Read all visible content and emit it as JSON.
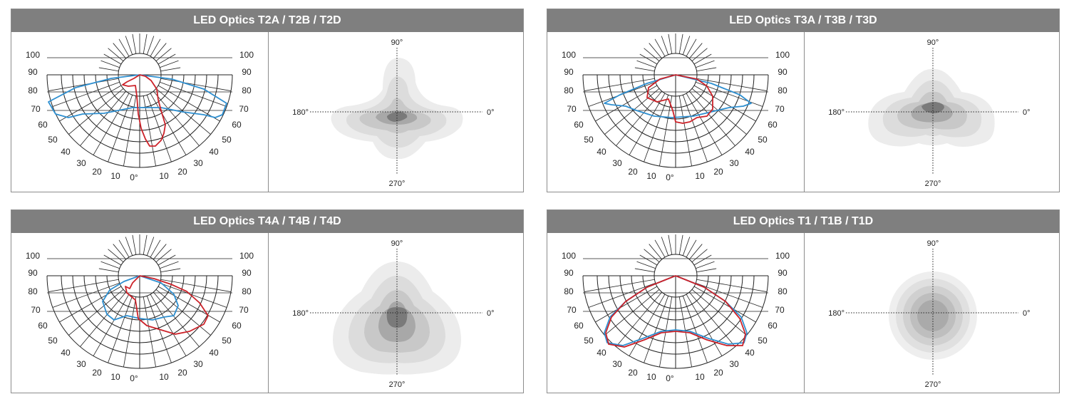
{
  "panels": [
    {
      "title": "LED Optics T2A / T2B / T2D",
      "polar": {
        "left_labels": [
          "100",
          "90",
          "80",
          "70",
          "60",
          "50",
          "40",
          "30",
          "20",
          "10",
          "0°"
        ],
        "right_labels": [
          "100",
          "90",
          "80",
          "70",
          "60",
          "50",
          "40",
          "30",
          "20",
          "10"
        ]
      },
      "iso": {
        "top": "90°",
        "left": "180°",
        "right": "0°",
        "bottom": "270°"
      }
    },
    {
      "title": "LED Optics T3A / T3B / T3D",
      "polar": {
        "left_labels": [
          "100",
          "90",
          "80",
          "70",
          "60",
          "50",
          "40",
          "30",
          "20",
          "10",
          "0°"
        ],
        "right_labels": [
          "100",
          "90",
          "80",
          "70",
          "60",
          "50",
          "40",
          "30",
          "20",
          "10"
        ]
      },
      "iso": {
        "top": "90°",
        "left": "180°",
        "right": "0°",
        "bottom": "270°"
      }
    },
    {
      "title": "LED Optics T4A / T4B / T4D",
      "polar": {
        "left_labels": [
          "100",
          "90",
          "80",
          "70",
          "60",
          "50",
          "40",
          "30",
          "20",
          "10",
          "0°"
        ],
        "right_labels": [
          "100",
          "90",
          "80",
          "70",
          "60",
          "50",
          "40",
          "30",
          "20",
          "10"
        ]
      },
      "iso": {
        "top": "90°",
        "left": "180°",
        "right": "0°",
        "bottom": "270°"
      }
    },
    {
      "title": "LED Optics T1 / T1B / T1D",
      "polar": {
        "left_labels": [
          "100",
          "90",
          "80",
          "70",
          "60",
          "50",
          "40",
          "30",
          "20",
          "10",
          "0°"
        ],
        "right_labels": [
          "100",
          "90",
          "80",
          "70",
          "60",
          "50",
          "40",
          "30",
          "20",
          "10"
        ]
      },
      "iso": {
        "top": "90°",
        "left": "180°",
        "right": "0°",
        "bottom": "270°"
      }
    }
  ],
  "colors": {
    "header": "#7f7f7f",
    "red_curve": "#cc2229",
    "blue_curve": "#2e8fd0",
    "grid": "#222222"
  }
}
